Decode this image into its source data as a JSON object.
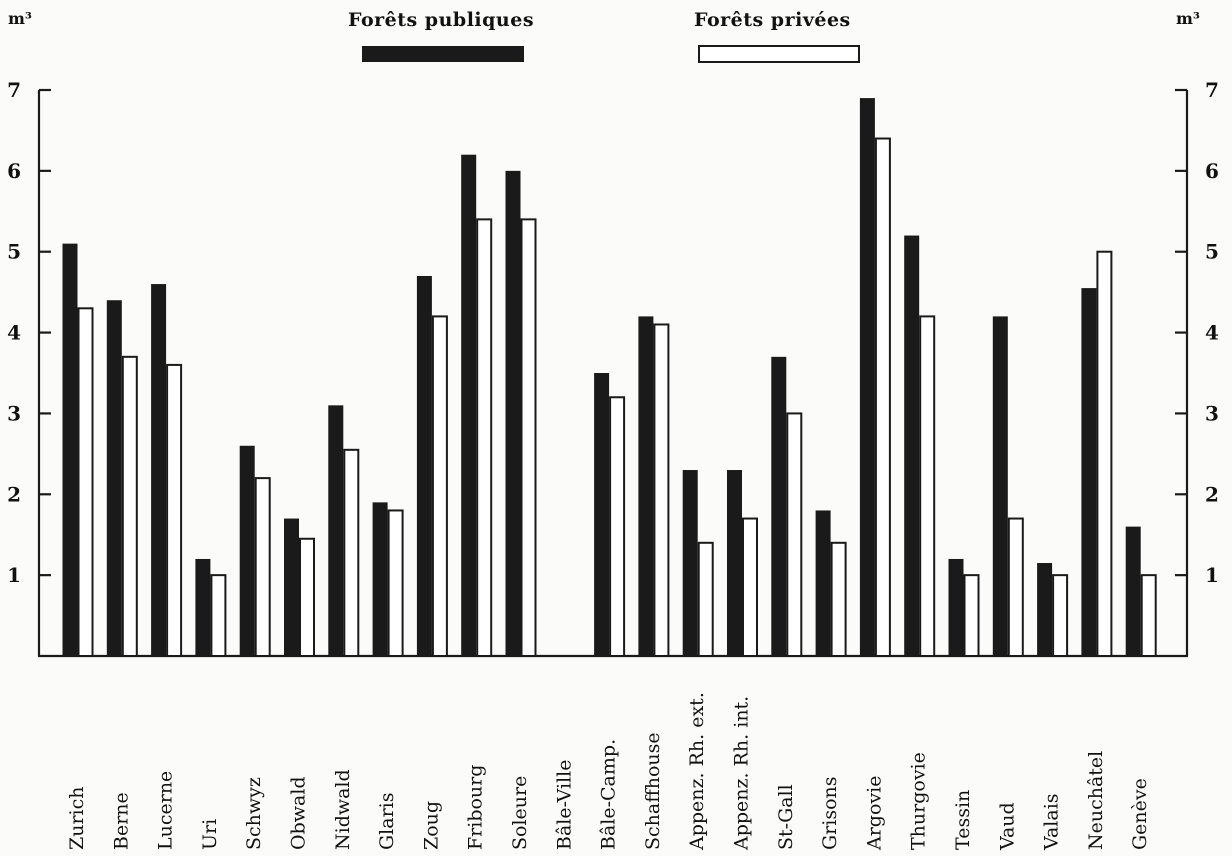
{
  "chart_data": {
    "type": "bar",
    "categories": [
      "Zurich",
      "Berne",
      "Lucerne",
      "Uri",
      "Schwyz",
      "Obwald",
      "Nidwald",
      "Glaris",
      "Zoug",
      "Fribourg",
      "Soleure",
      "Bâle-Ville",
      "Bâle-Camp.",
      "Schaffhouse",
      "Appenz. Rh. ext.",
      "Appenz. Rh. int.",
      "St-Gall",
      "Grisons",
      "Argovie",
      "Thurgovie",
      "Tessin",
      "Vaud",
      "Valais",
      "Neuchâtel",
      "Genève"
    ],
    "series": [
      {
        "name": "Forêts publiques",
        "color": "#1a1a1a",
        "values": [
          5.1,
          4.4,
          4.6,
          1.2,
          2.6,
          1.7,
          3.1,
          1.9,
          4.7,
          6.2,
          6.0,
          0,
          3.5,
          4.2,
          2.3,
          2.3,
          3.7,
          1.8,
          6.9,
          5.2,
          1.2,
          4.2,
          1.15,
          4.55,
          1.6
        ]
      },
      {
        "name": "Forêts privées",
        "color": "#ffffff",
        "values": [
          4.3,
          3.7,
          3.6,
          1.0,
          2.2,
          1.45,
          2.55,
          1.8,
          4.2,
          5.4,
          5.4,
          0,
          3.2,
          4.1,
          1.4,
          1.7,
          3.0,
          1.4,
          6.4,
          4.2,
          1.0,
          1.7,
          1.0,
          5.0,
          1.0
        ]
      }
    ],
    "yticks": [
      1,
      2,
      3,
      4,
      5,
      6,
      7
    ],
    "ylim": [
      0,
      7
    ],
    "yunit_left": "m³",
    "yunit_right": "m³",
    "legend_position": "top"
  }
}
